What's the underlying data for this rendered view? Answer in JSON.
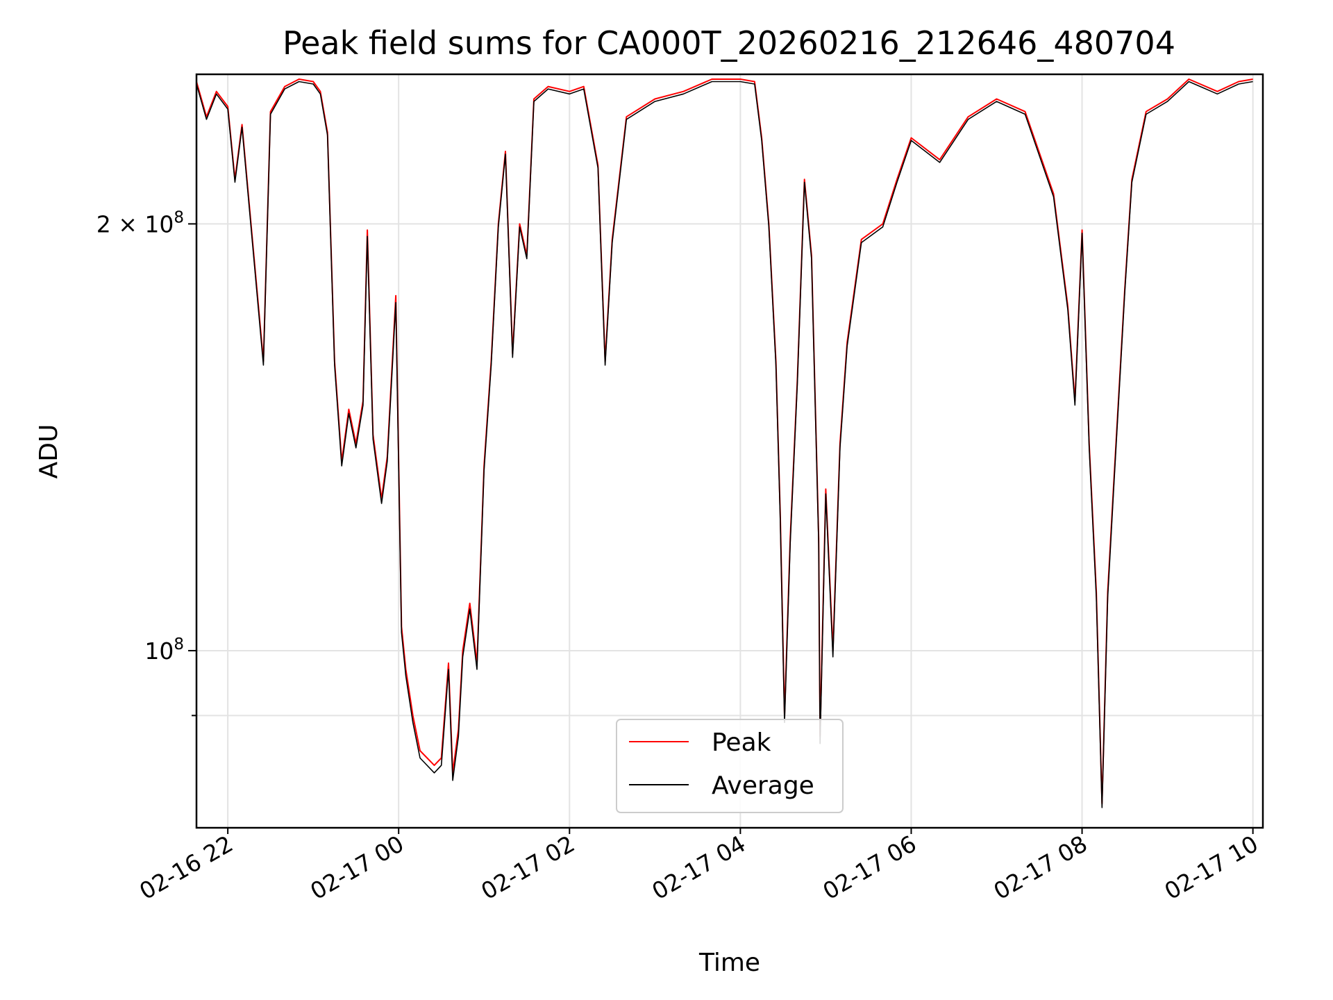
{
  "chart_data": {
    "type": "line",
    "title": "Peak field sums for CA000T_20260216_212646_480704",
    "xlabel": "Time",
    "ylabel": "ADU",
    "yscale": "log",
    "ylim": [
      75000000,
      255000000
    ],
    "xlim": [
      "2026-02-16 21:38",
      "2026-02-17 10:07"
    ],
    "x_ticks": [
      "02-16 22",
      "02-17 00",
      "02-17 02",
      "02-17 04",
      "02-17 06",
      "02-17 08",
      "02-17 10"
    ],
    "y_ticks_labeled": [
      {
        "value": 100000000,
        "mantissa": "",
        "exponent": "8"
      },
      {
        "value": 200000000,
        "mantissa": "2",
        "exponent": "8"
      }
    ],
    "y_ticks_minor": [
      90000000
    ],
    "grid": true,
    "legend_position": "lower center",
    "series": [
      {
        "name": "Peak",
        "color": "#ff0000",
        "points": [
          [
            "2026-02-16 21:38",
            252000000
          ],
          [
            "2026-02-16 21:45",
            238000000
          ],
          [
            "2026-02-16 21:52",
            248000000
          ],
          [
            "2026-02-16 22:00",
            242000000
          ],
          [
            "2026-02-16 22:05",
            215000000
          ],
          [
            "2026-02-16 22:10",
            235000000
          ],
          [
            "2026-02-16 22:20",
            182000000
          ],
          [
            "2026-02-16 22:25",
            160000000
          ],
          [
            "2026-02-16 22:30",
            240000000
          ],
          [
            "2026-02-16 22:40",
            250000000
          ],
          [
            "2026-02-16 22:50",
            253000000
          ],
          [
            "2026-02-16 23:00",
            252000000
          ],
          [
            "2026-02-16 23:05",
            248000000
          ],
          [
            "2026-02-16 23:10",
            232000000
          ],
          [
            "2026-02-16 23:15",
            160000000
          ],
          [
            "2026-02-16 23:20",
            136000000
          ],
          [
            "2026-02-16 23:25",
            148000000
          ],
          [
            "2026-02-16 23:30",
            140000000
          ],
          [
            "2026-02-16 23:35",
            150000000
          ],
          [
            "2026-02-16 23:38",
            198000000
          ],
          [
            "2026-02-16 23:42",
            142000000
          ],
          [
            "2026-02-16 23:48",
            128000000
          ],
          [
            "2026-02-16 23:52",
            137000000
          ],
          [
            "2026-02-16 23:58",
            178000000
          ],
          [
            "2026-02-17 00:02",
            104000000
          ],
          [
            "2026-02-17 00:05",
            97000000
          ],
          [
            "2026-02-17 00:10",
            90000000
          ],
          [
            "2026-02-17 00:15",
            85000000
          ],
          [
            "2026-02-17 00:25",
            83000000
          ],
          [
            "2026-02-17 00:30",
            84000000
          ],
          [
            "2026-02-17 00:35",
            98000000
          ],
          [
            "2026-02-17 00:38",
            82000000
          ],
          [
            "2026-02-17 00:42",
            88000000
          ],
          [
            "2026-02-17 00:45",
            100000000
          ],
          [
            "2026-02-17 00:50",
            108000000
          ],
          [
            "2026-02-17 00:55",
            98000000
          ],
          [
            "2026-02-17 01:00",
            135000000
          ],
          [
            "2026-02-17 01:05",
            160000000
          ],
          [
            "2026-02-17 01:10",
            200000000
          ],
          [
            "2026-02-17 01:15",
            225000000
          ],
          [
            "2026-02-17 01:20",
            162000000
          ],
          [
            "2026-02-17 01:25",
            200000000
          ],
          [
            "2026-02-17 01:30",
            190000000
          ],
          [
            "2026-02-17 01:35",
            245000000
          ],
          [
            "2026-02-17 01:45",
            250000000
          ],
          [
            "2026-02-17 02:00",
            248000000
          ],
          [
            "2026-02-17 02:10",
            250000000
          ],
          [
            "2026-02-17 02:20",
            220000000
          ],
          [
            "2026-02-17 02:25",
            160000000
          ],
          [
            "2026-02-17 02:30",
            195000000
          ],
          [
            "2026-02-17 02:40",
            238000000
          ],
          [
            "2026-02-17 03:00",
            245000000
          ],
          [
            "2026-02-17 03:20",
            248000000
          ],
          [
            "2026-02-17 03:40",
            253000000
          ],
          [
            "2026-02-17 04:00",
            253000000
          ],
          [
            "2026-02-17 04:10",
            252000000
          ],
          [
            "2026-02-17 04:15",
            230000000
          ],
          [
            "2026-02-17 04:20",
            200000000
          ],
          [
            "2026-02-17 04:25",
            160000000
          ],
          [
            "2026-02-17 04:28",
            125000000
          ],
          [
            "2026-02-17 04:31",
            90000000
          ],
          [
            "2026-02-17 04:35",
            120000000
          ],
          [
            "2026-02-17 04:40",
            155000000
          ],
          [
            "2026-02-17 04:45",
            215000000
          ],
          [
            "2026-02-17 04:50",
            190000000
          ],
          [
            "2026-02-17 04:55",
            120000000
          ],
          [
            "2026-02-17 04:56",
            87000000
          ],
          [
            "2026-02-17 05:00",
            130000000
          ],
          [
            "2026-02-17 05:05",
            100000000
          ],
          [
            "2026-02-17 05:10",
            140000000
          ],
          [
            "2026-02-17 05:15",
            165000000
          ],
          [
            "2026-02-17 05:25",
            195000000
          ],
          [
            "2026-02-17 05:40",
            200000000
          ],
          [
            "2026-02-17 05:50",
            215000000
          ],
          [
            "2026-02-17 06:00",
            230000000
          ],
          [
            "2026-02-17 06:20",
            222000000
          ],
          [
            "2026-02-17 06:40",
            238000000
          ],
          [
            "2026-02-17 07:00",
            245000000
          ],
          [
            "2026-02-17 07:20",
            240000000
          ],
          [
            "2026-02-17 07:40",
            210000000
          ],
          [
            "2026-02-17 07:50",
            175000000
          ],
          [
            "2026-02-17 07:55",
            150000000
          ],
          [
            "2026-02-17 08:00",
            198000000
          ],
          [
            "2026-02-17 08:05",
            140000000
          ],
          [
            "2026-02-17 08:10",
            110000000
          ],
          [
            "2026-02-17 08:14",
            78000000
          ],
          [
            "2026-02-17 08:18",
            110000000
          ],
          [
            "2026-02-17 08:22",
            130000000
          ],
          [
            "2026-02-17 08:30",
            180000000
          ],
          [
            "2026-02-17 08:35",
            215000000
          ],
          [
            "2026-02-17 08:45",
            240000000
          ],
          [
            "2026-02-17 09:00",
            245000000
          ],
          [
            "2026-02-17 09:15",
            253000000
          ],
          [
            "2026-02-17 09:35",
            248000000
          ],
          [
            "2026-02-17 09:50",
            252000000
          ],
          [
            "2026-02-17 10:00",
            253000000
          ]
        ]
      },
      {
        "name": "Average",
        "color": "#000000",
        "points": [
          [
            "2026-02-16 21:38",
            251000000
          ],
          [
            "2026-02-16 21:45",
            237000000
          ],
          [
            "2026-02-16 21:52",
            247000000
          ],
          [
            "2026-02-16 22:00",
            241000000
          ],
          [
            "2026-02-16 22:05",
            214000000
          ],
          [
            "2026-02-16 22:10",
            234000000
          ],
          [
            "2026-02-16 22:20",
            181000000
          ],
          [
            "2026-02-16 22:25",
            159000000
          ],
          [
            "2026-02-16 22:30",
            239000000
          ],
          [
            "2026-02-16 22:40",
            249000000
          ],
          [
            "2026-02-16 22:50",
            252000000
          ],
          [
            "2026-02-16 23:00",
            251000000
          ],
          [
            "2026-02-16 23:05",
            247000000
          ],
          [
            "2026-02-16 23:10",
            231000000
          ],
          [
            "2026-02-16 23:15",
            159000000
          ],
          [
            "2026-02-16 23:20",
            135000000
          ],
          [
            "2026-02-16 23:25",
            147000000
          ],
          [
            "2026-02-16 23:30",
            139000000
          ],
          [
            "2026-02-16 23:35",
            149000000
          ],
          [
            "2026-02-16 23:38",
            196000000
          ],
          [
            "2026-02-16 23:42",
            141000000
          ],
          [
            "2026-02-16 23:48",
            127000000
          ],
          [
            "2026-02-16 23:52",
            136000000
          ],
          [
            "2026-02-16 23:58",
            176000000
          ],
          [
            "2026-02-17 00:02",
            103000000
          ],
          [
            "2026-02-17 00:05",
            96000000
          ],
          [
            "2026-02-17 00:10",
            89000000
          ],
          [
            "2026-02-17 00:15",
            84000000
          ],
          [
            "2026-02-17 00:25",
            82000000
          ],
          [
            "2026-02-17 00:30",
            83000000
          ],
          [
            "2026-02-17 00:35",
            97000000
          ],
          [
            "2026-02-17 00:38",
            81000000
          ],
          [
            "2026-02-17 00:42",
            87000000
          ],
          [
            "2026-02-17 00:45",
            99000000
          ],
          [
            "2026-02-17 00:50",
            107000000
          ],
          [
            "2026-02-17 00:55",
            97000000
          ],
          [
            "2026-02-17 01:00",
            134000000
          ],
          [
            "2026-02-17 01:05",
            159000000
          ],
          [
            "2026-02-17 01:10",
            199000000
          ],
          [
            "2026-02-17 01:15",
            224000000
          ],
          [
            "2026-02-17 01:20",
            161000000
          ],
          [
            "2026-02-17 01:25",
            199000000
          ],
          [
            "2026-02-17 01:30",
            189000000
          ],
          [
            "2026-02-17 01:35",
            244000000
          ],
          [
            "2026-02-17 01:45",
            249000000
          ],
          [
            "2026-02-17 02:00",
            247000000
          ],
          [
            "2026-02-17 02:10",
            249000000
          ],
          [
            "2026-02-17 02:20",
            219000000
          ],
          [
            "2026-02-17 02:25",
            159000000
          ],
          [
            "2026-02-17 02:30",
            194000000
          ],
          [
            "2026-02-17 02:40",
            237000000
          ],
          [
            "2026-02-17 03:00",
            244000000
          ],
          [
            "2026-02-17 03:20",
            247000000
          ],
          [
            "2026-02-17 03:40",
            252000000
          ],
          [
            "2026-02-17 04:00",
            252000000
          ],
          [
            "2026-02-17 04:10",
            251000000
          ],
          [
            "2026-02-17 04:15",
            229000000
          ],
          [
            "2026-02-17 04:20",
            199000000
          ],
          [
            "2026-02-17 04:25",
            159000000
          ],
          [
            "2026-02-17 04:28",
            124000000
          ],
          [
            "2026-02-17 04:31",
            89000000
          ],
          [
            "2026-02-17 04:35",
            119000000
          ],
          [
            "2026-02-17 04:40",
            154000000
          ],
          [
            "2026-02-17 04:45",
            214000000
          ],
          [
            "2026-02-17 04:50",
            189000000
          ],
          [
            "2026-02-17 04:55",
            119000000
          ],
          [
            "2026-02-17 04:56",
            86000000
          ],
          [
            "2026-02-17 05:00",
            129000000
          ],
          [
            "2026-02-17 05:05",
            99000000
          ],
          [
            "2026-02-17 05:10",
            139000000
          ],
          [
            "2026-02-17 05:15",
            164000000
          ],
          [
            "2026-02-17 05:25",
            194000000
          ],
          [
            "2026-02-17 05:40",
            199000000
          ],
          [
            "2026-02-17 05:50",
            214000000
          ],
          [
            "2026-02-17 06:00",
            229000000
          ],
          [
            "2026-02-17 06:20",
            221000000
          ],
          [
            "2026-02-17 06:40",
            237000000
          ],
          [
            "2026-02-17 07:00",
            244000000
          ],
          [
            "2026-02-17 07:20",
            239000000
          ],
          [
            "2026-02-17 07:40",
            209000000
          ],
          [
            "2026-02-17 07:50",
            174000000
          ],
          [
            "2026-02-17 07:55",
            149000000
          ],
          [
            "2026-02-17 08:00",
            197000000
          ],
          [
            "2026-02-17 08:05",
            139000000
          ],
          [
            "2026-02-17 08:10",
            109000000
          ],
          [
            "2026-02-17 08:14",
            77500000
          ],
          [
            "2026-02-17 08:18",
            109000000
          ],
          [
            "2026-02-17 08:22",
            129000000
          ],
          [
            "2026-02-17 08:30",
            179000000
          ],
          [
            "2026-02-17 08:35",
            214000000
          ],
          [
            "2026-02-17 08:45",
            239000000
          ],
          [
            "2026-02-17 09:00",
            244000000
          ],
          [
            "2026-02-17 09:15",
            252000000
          ],
          [
            "2026-02-17 09:35",
            247000000
          ],
          [
            "2026-02-17 09:50",
            251000000
          ],
          [
            "2026-02-17 10:00",
            252000000
          ]
        ]
      }
    ]
  }
}
